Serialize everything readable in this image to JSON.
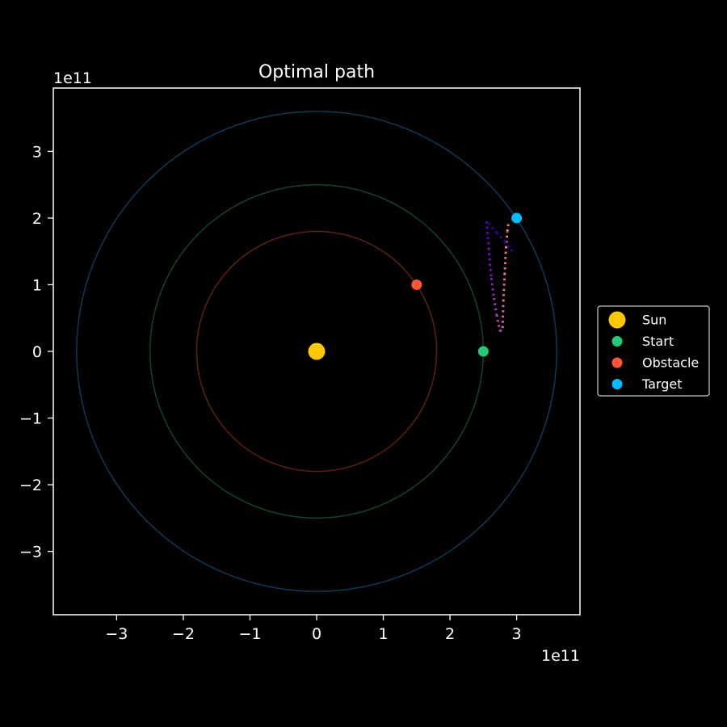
{
  "chart_data": {
    "type": "scatter",
    "title": "Optimal path",
    "xlabel": "",
    "ylabel": "",
    "x_offset_label": "1e11",
    "y_offset_label": "1e11",
    "xlim": [
      -3.95,
      3.95
    ],
    "ylim": [
      -3.95,
      3.95
    ],
    "x_ticks": [
      -3,
      -2,
      -1,
      0,
      1,
      2,
      3
    ],
    "y_ticks": [
      -3,
      -2,
      -1,
      0,
      1,
      2,
      3
    ],
    "x_tick_labels": [
      "−3",
      "−2",
      "−1",
      "0",
      "1",
      "2",
      "3"
    ],
    "y_tick_labels": [
      "−3",
      "−2",
      "−1",
      "0",
      "1",
      "2",
      "3"
    ],
    "grid": false,
    "legend_position": "right",
    "orbits": [
      {
        "radius": 1.8,
        "color": "#5a1e12"
      },
      {
        "radius": 2.5,
        "color": "#12402a"
      },
      {
        "radius": 3.6,
        "color": "#0f3650"
      }
    ],
    "series": [
      {
        "name": "Sun",
        "x": [
          0
        ],
        "y": [
          0
        ],
        "color": "#ffc800",
        "marker": "large"
      },
      {
        "name": "Start",
        "x": [
          2.5
        ],
        "y": [
          0
        ],
        "color": "#22cc77",
        "marker": "small"
      },
      {
        "name": "Obstacle",
        "x": [
          1.5
        ],
        "y": [
          1.0
        ],
        "color": "#ff5533",
        "marker": "small"
      },
      {
        "name": "Target",
        "x": [
          3.0
        ],
        "y": [
          2.0
        ],
        "color": "#00bbff",
        "marker": "small"
      }
    ],
    "paths": [
      {
        "x": [
          2.55,
          2.58,
          2.62,
          2.66,
          2.7,
          2.75,
          2.79
        ],
        "y": [
          1.95,
          1.55,
          1.1,
          0.8,
          0.55,
          0.3,
          0.35
        ],
        "color_start": "#6600cc",
        "color_end": "#dd66aa"
      },
      {
        "x": [
          2.79,
          2.8,
          2.82,
          2.84,
          2.86,
          2.88
        ],
        "y": [
          0.35,
          0.75,
          1.15,
          1.55,
          1.8,
          1.95
        ],
        "color_start": "#dd66aa",
        "color_end": "#ff8844"
      },
      {
        "x": [
          2.58,
          2.7,
          2.82,
          2.95
        ],
        "y": [
          1.92,
          1.78,
          1.65,
          1.48
        ],
        "color_start": "#330099",
        "color_end": "#330099"
      }
    ]
  }
}
